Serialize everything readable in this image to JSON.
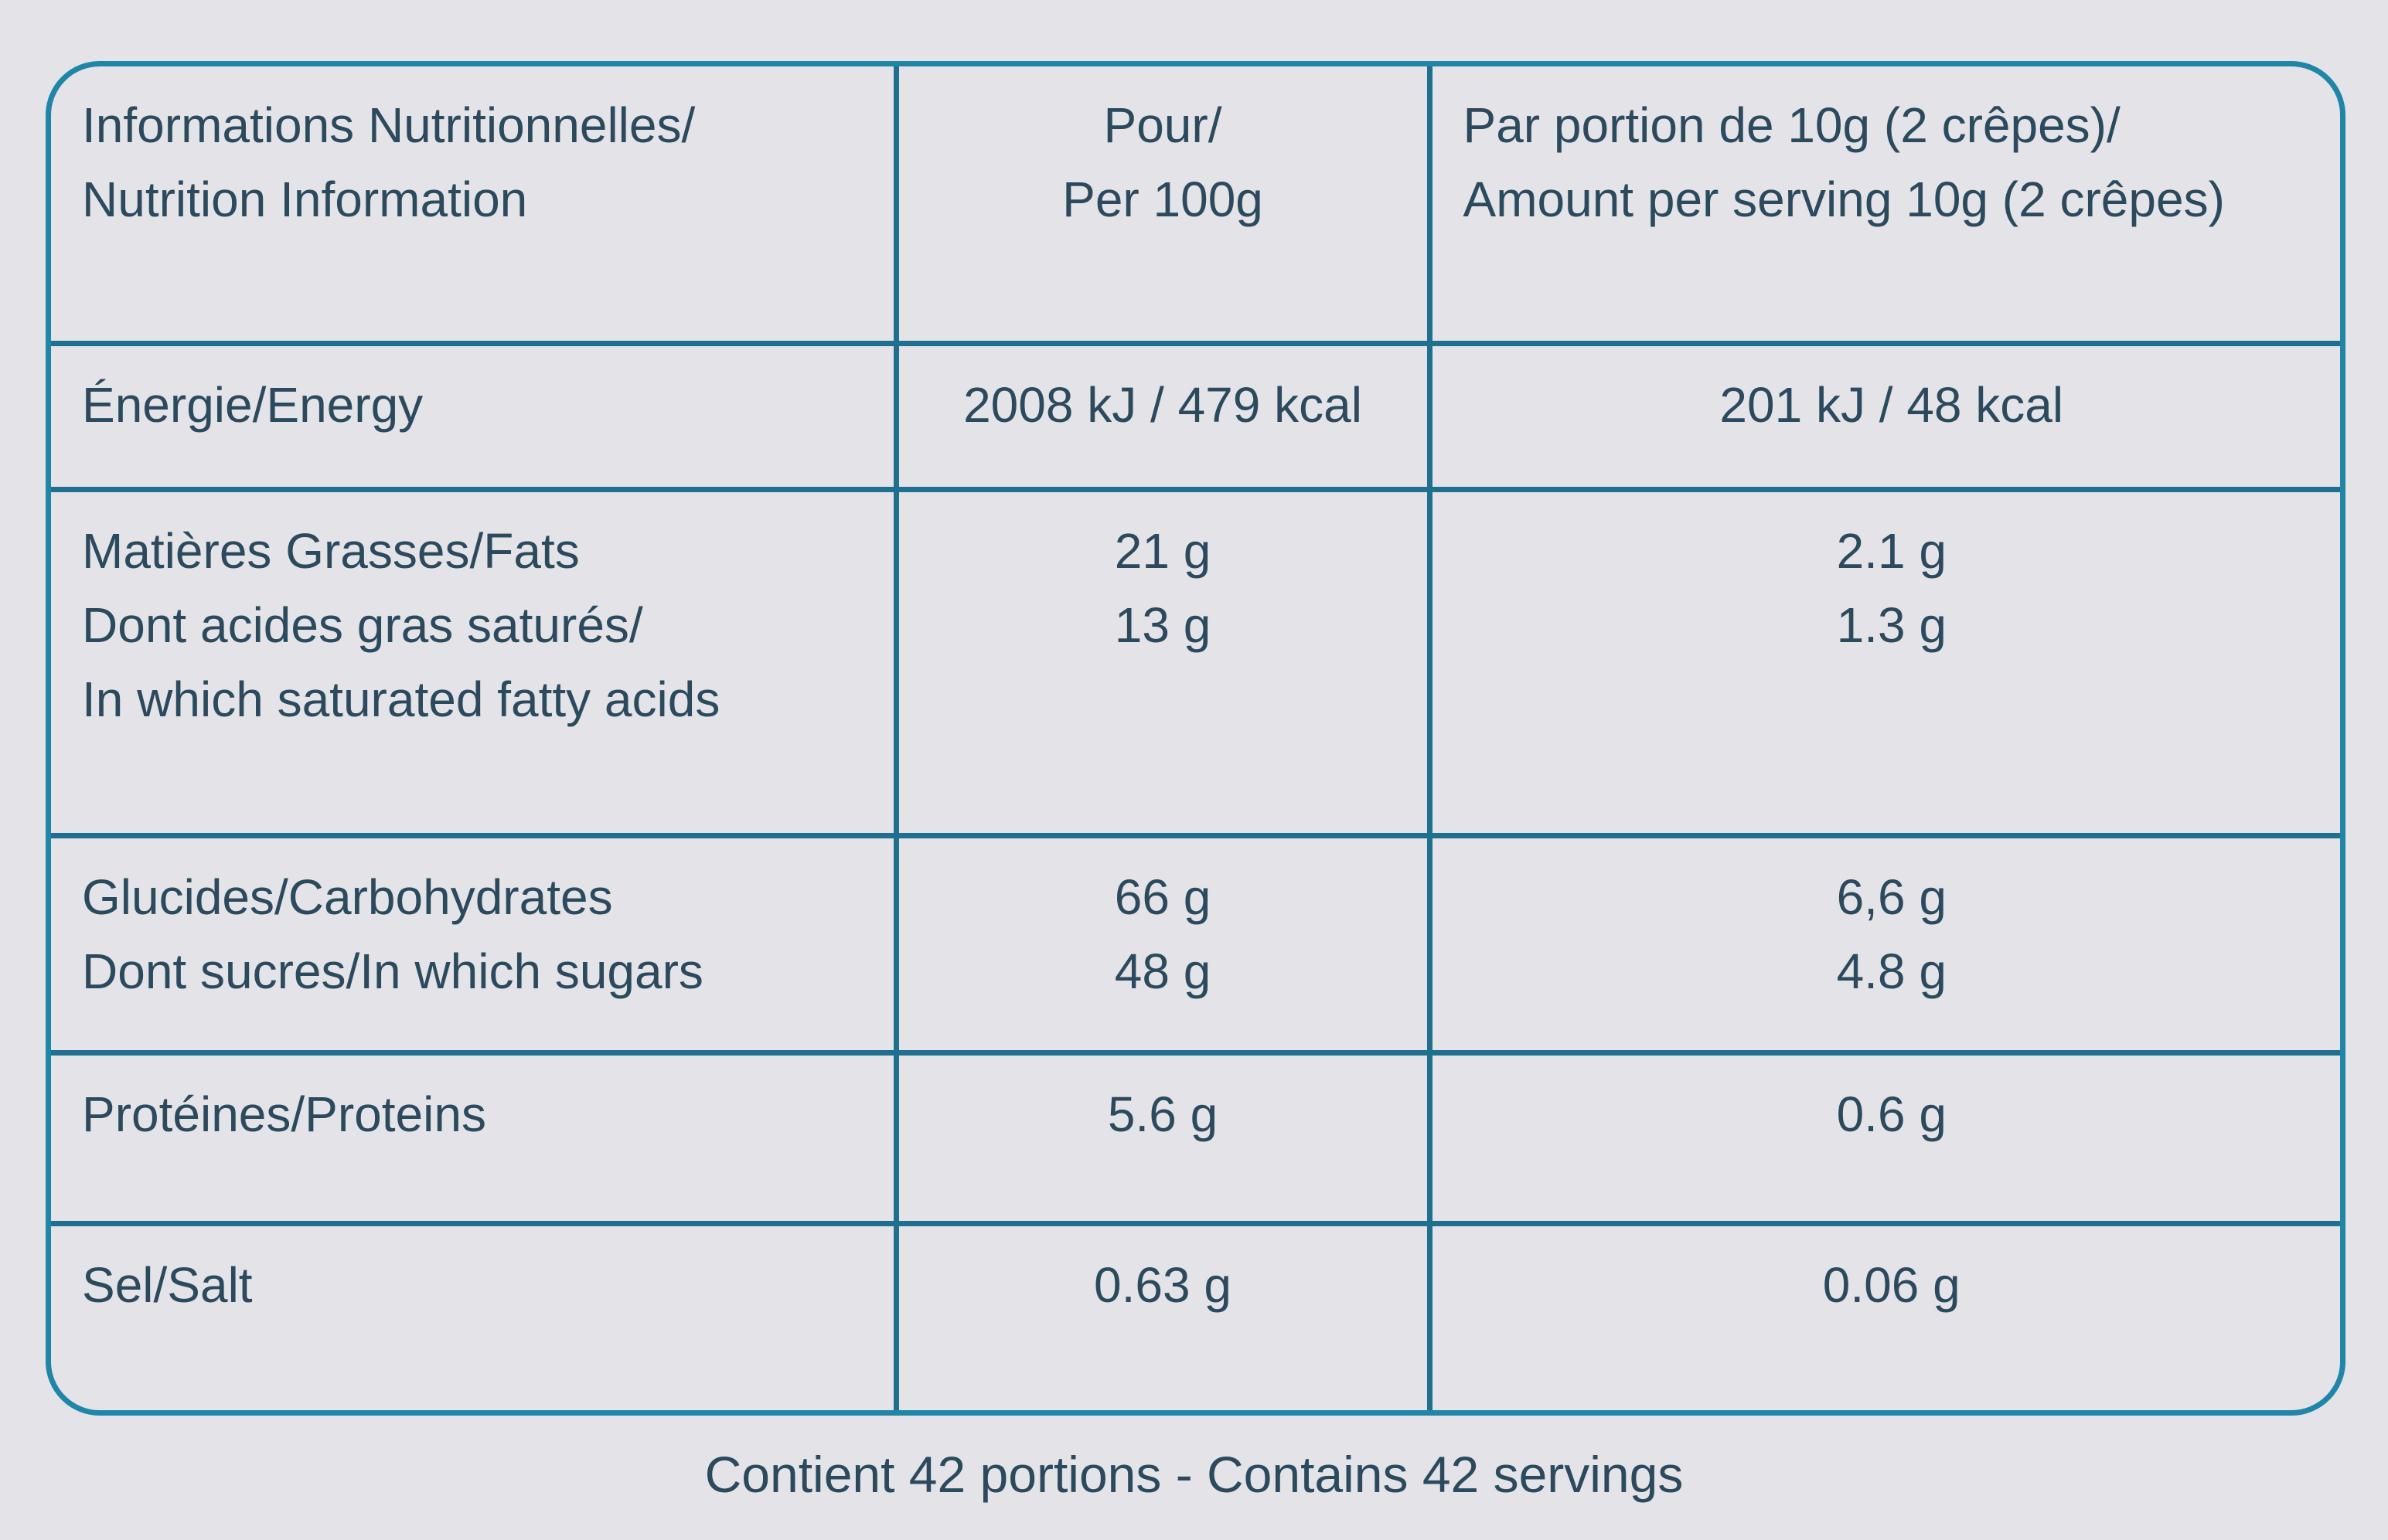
{
  "header": [
    [
      "Informations Nutritionnelles/",
      "Nutrition Information"
    ],
    [
      "Pour/",
      "Per 100g"
    ],
    [
      "Par portion de 10g (2 crêpes)/",
      "Amount per serving 10g (2 crêpes)"
    ]
  ],
  "rows": [
    [
      [
        "Énergie/Energy"
      ],
      [
        "2008 kJ / 479 kcal"
      ],
      [
        "201 kJ / 48 kcal"
      ]
    ],
    [
      [
        "Matières Grasses/Fats",
        "Dont acides gras saturés/",
        "In which saturated fatty acids"
      ],
      [
        "21 g",
        "13 g"
      ],
      [
        "2.1 g",
        "1.3 g"
      ]
    ],
    [
      [
        "Glucides/Carbohydrates",
        "Dont sucres/In which sugars"
      ],
      [
        "66 g",
        "48 g"
      ],
      [
        "6,6 g",
        "4.8 g"
      ]
    ],
    [
      [
        "Protéines/Proteins"
      ],
      [
        "5.6 g"
      ],
      [
        "0.6 g"
      ]
    ],
    [
      [
        "Sel/Salt"
      ],
      [
        "0.63 g"
      ],
      [
        "0.06 g"
      ]
    ]
  ],
  "footer": "Contient 42 portions - Contains 42 servings"
}
